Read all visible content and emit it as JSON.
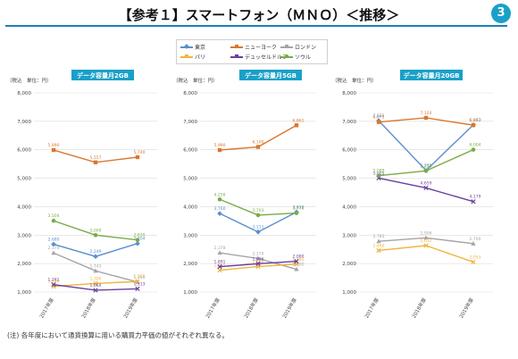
{
  "header": {
    "title": "【参考１】スマートフォン（ＭＮＯ）＜推移＞",
    "page_number": "3",
    "accent_color": "#1f7fb8"
  },
  "footnote": "(注) 各年度において通貨換算に用いる購買力平価の値がそれぞれ異なる。",
  "legend": [
    {
      "name": "東京",
      "color": "#5b8fd0",
      "marker": "diamond"
    },
    {
      "name": "ニューヨーク",
      "color": "#d9772f",
      "marker": "square"
    },
    {
      "name": "ロンドン",
      "color": "#a5a5a5",
      "marker": "triangle"
    },
    {
      "name": "パリ",
      "color": "#f2b43d",
      "marker": "x"
    },
    {
      "name": "デュッセルドルフ",
      "color": "#6a3fa0",
      "marker": "x"
    },
    {
      "name": "ソウル",
      "color": "#79ab46",
      "marker": "circle"
    }
  ],
  "chart_data": [
    {
      "type": "line",
      "title": "データ容量月2GB",
      "unit_label": "（税込　単位：円）",
      "categories": [
        "2017年度",
        "2018年度",
        "2019年度"
      ],
      "ylim": [
        1000,
        8000
      ],
      "yticks": [
        "1,000",
        "2,000",
        "3,000",
        "4,000",
        "5,000",
        "6,000",
        "7,000",
        "8,000"
      ],
      "series": [
        {
          "name": "東京",
          "values": [
            2680,
            2249,
            2704
          ],
          "labels": [
            "2,680",
            "2,249",
            "2,704"
          ]
        },
        {
          "name": "ニューヨーク",
          "values": [
            5990,
            5557,
            5740
          ],
          "labels": [
            "5,990",
            "5,557",
            "5,740"
          ]
        },
        {
          "name": "ロンドン",
          "values": [
            2374,
            1743,
            1350
          ],
          "labels": [
            "2,374",
            "1,743",
            "1,350"
          ]
        },
        {
          "name": "パリ",
          "values": [
            1200,
            1300,
            1369
          ],
          "labels": [
            "1,200",
            "1,300",
            "1,369"
          ]
        },
        {
          "name": "デュッセルドルフ",
          "values": [
            1261,
            1064,
            1113
          ],
          "labels": [
            "1,261",
            "1,064",
            "1,113"
          ]
        },
        {
          "name": "ソウル",
          "values": [
            3504,
            3000,
            2830
          ],
          "labels": [
            "3,504",
            "3,000",
            "2,830"
          ]
        }
      ]
    },
    {
      "type": "line",
      "title": "データ容量月5GB",
      "unit_label": "（税込　単位：円）",
      "categories": [
        "2017年度",
        "2018年度",
        "2019年度"
      ],
      "ylim": [
        1000,
        8000
      ],
      "yticks": [
        "1,000",
        "2,000",
        "3,000",
        "4,000",
        "5,000",
        "6,000",
        "7,000",
        "8,000"
      ],
      "series": [
        {
          "name": "東京",
          "values": [
            3760,
            3111,
            3810
          ],
          "labels": [
            "3,760",
            "3,111",
            "3,810"
          ]
        },
        {
          "name": "ニューヨーク",
          "values": [
            5990,
            6100,
            6861
          ],
          "labels": [
            "5,990",
            "6,100",
            "6,861"
          ]
        },
        {
          "name": "ロンドン",
          "values": [
            2378,
            2179,
            1800
          ],
          "labels": [
            "2,378",
            "2,179",
            "1,800"
          ]
        },
        {
          "name": "パリ",
          "values": [
            1765,
            1896,
            1980
          ],
          "labels": [
            "1,765",
            "1,896",
            "1,980"
          ]
        },
        {
          "name": "デュッセルドルフ",
          "values": [
            1891,
            1996,
            2080
          ],
          "labels": [
            "1,891",
            "1,996",
            "2,080"
          ]
        },
        {
          "name": "ソウル",
          "values": [
            4256,
            3703,
            3776
          ],
          "labels": [
            "4,256",
            "3,703",
            "3,776"
          ]
        }
      ]
    },
    {
      "type": "line",
      "title": "データ容量月20GB",
      "unit_label": "（税込　単位：円）",
      "categories": [
        "2017年度",
        "2018年度",
        "2019年度"
      ],
      "ylim": [
        1000,
        8000
      ],
      "yticks": [
        "1,000",
        "2,000",
        "3,000",
        "4,000",
        "5,000",
        "6,000",
        "7,000",
        "8,000"
      ],
      "series": [
        {
          "name": "東京",
          "values": [
            7022,
            5272,
            6877
          ],
          "labels": [
            "7,022",
            "5,272",
            "6,877"
          ]
        },
        {
          "name": "ニューヨーク",
          "values": [
            6975,
            7124,
            6863
          ],
          "labels": [
            "6,975",
            "7,124",
            "6,863"
          ]
        },
        {
          "name": "ロンドン",
          "values": [
            2783,
            2906,
            2700
          ],
          "labels": [
            "2,783",
            "2,906",
            "2,700"
          ]
        },
        {
          "name": "パリ",
          "values": [
            2460,
            2632,
            2053
          ],
          "labels": [
            "2,460",
            "2,632",
            "2,053"
          ]
        },
        {
          "name": "デュッセルドルフ",
          "values": [
            5005,
            4659,
            4179
          ],
          "labels": [
            "5,005",
            "4,659",
            "4,179"
          ]
        },
        {
          "name": "ソウル",
          "values": [
            5089,
            5259,
            6004
          ],
          "labels": [
            "5,089",
            "5,259",
            "6,004"
          ]
        }
      ]
    }
  ]
}
